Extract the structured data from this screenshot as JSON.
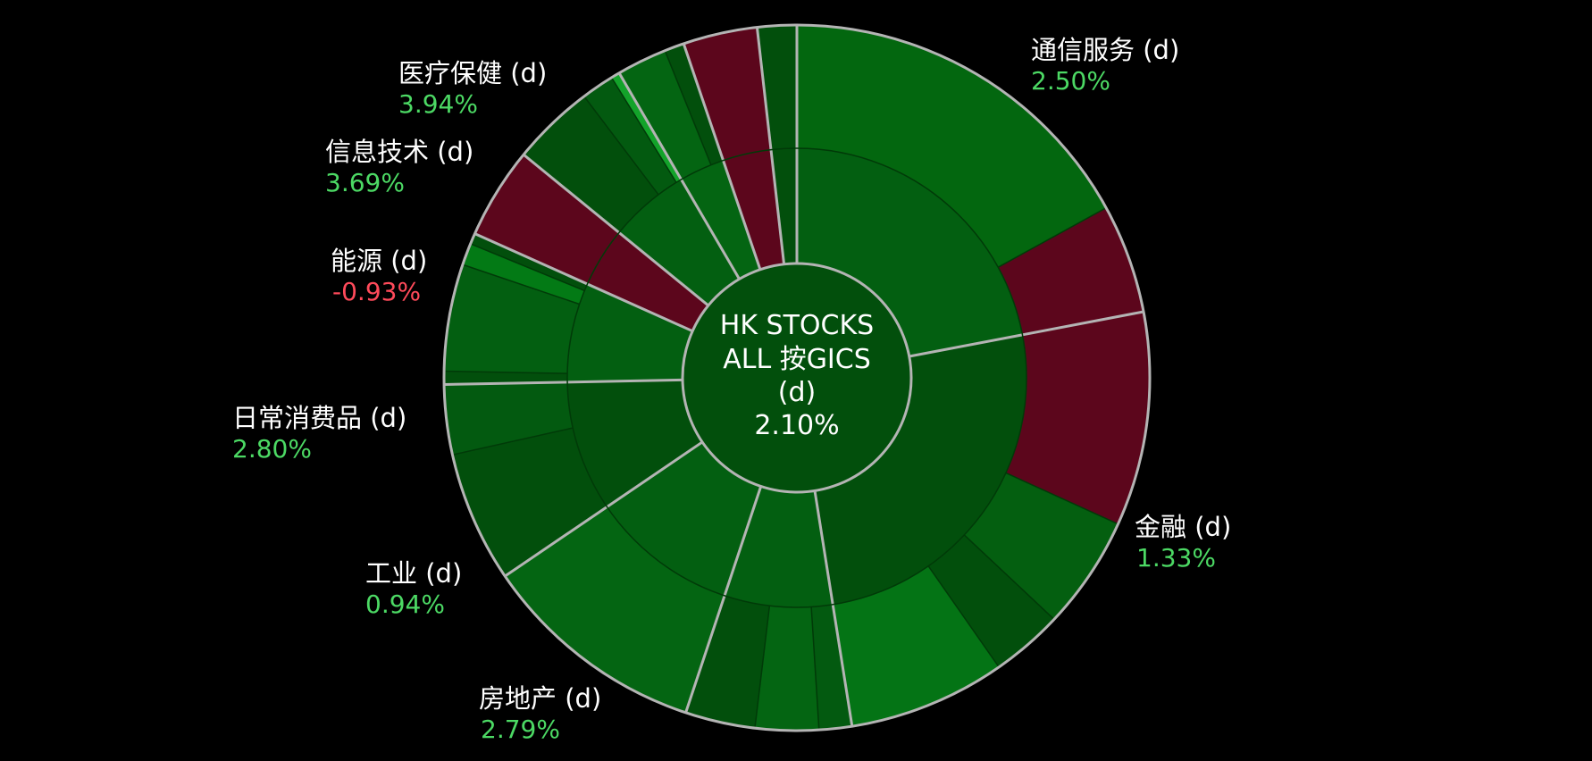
{
  "chart_data": {
    "type": "sunburst",
    "title": "",
    "center": {
      "lines": [
        "HK STOCKS",
        "ALL 按GICS",
        "(d)"
      ],
      "change": "2.10%",
      "color": "#024f0c"
    },
    "palette": {
      "positive_color": "#4cd964",
      "negative_color": "#ff4a5a",
      "separator_color": "#b4b4b4"
    },
    "sectors": [
      {
        "name": "通信服务 (d)",
        "change": "2.50%",
        "direction": "up",
        "share_pct": 22.0,
        "color": "#035f11",
        "children": [
          {
            "share_pct": 17.0,
            "color": "#03670f"
          },
          {
            "share_pct": 5.0,
            "color": "#5c061c"
          }
        ]
      },
      {
        "name": "金融 (d)",
        "change": "1.33%",
        "direction": "up",
        "share_pct": 25.5,
        "color": "#024f0c",
        "children": [
          {
            "share_pct": 9.8,
            "color": "#5c061c"
          },
          {
            "share_pct": 5.2,
            "color": "#045f10"
          },
          {
            "share_pct": 3.3,
            "color": "#024f0c"
          },
          {
            "share_pct": 7.2,
            "color": "#047415"
          }
        ]
      },
      {
        "name": "房地产 (d)",
        "change": "2.79%",
        "direction": "up",
        "share_pct": 7.6,
        "color": "#035f11",
        "children": [
          {
            "share_pct": 1.5,
            "color": "#035a10"
          },
          {
            "share_pct": 2.9,
            "color": "#046512"
          },
          {
            "share_pct": 3.2,
            "color": "#024f0c"
          }
        ]
      },
      {
        "name": "工业 (d)",
        "change": "0.94%",
        "direction": "up",
        "share_pct": 10.4,
        "color": "#035f11",
        "children": [
          {
            "share_pct": 10.4,
            "color": "#046512"
          }
        ]
      },
      {
        "name": "日常消费品 (d)",
        "change": "2.80%",
        "direction": "up",
        "share_pct": 9.2,
        "color": "#024f0c",
        "children": [
          {
            "share_pct": 6.0,
            "color": "#024f0c"
          },
          {
            "share_pct": 3.2,
            "color": "#035a10"
          }
        ]
      },
      {
        "name": "日常消费品 (d)",
        "change": "2.80%",
        "direction": "up",
        "share_pct": 7.0,
        "color": "#035f11",
        "children": [
          {
            "share_pct": 0.6,
            "color": "#024f0c"
          },
          {
            "share_pct": 4.9,
            "color": "#035f11"
          },
          {
            "share_pct": 1.0,
            "color": "#037a15"
          },
          {
            "share_pct": 0.5,
            "color": "#024f0c"
          }
        ]
      },
      {
        "name": "能源 (d)",
        "change": "-0.93%",
        "direction": "down",
        "share_pct": 4.2,
        "color": "#5c061c",
        "children": [
          {
            "share_pct": 4.2,
            "color": "#5c061c"
          }
        ]
      },
      {
        "name": "信息技术 (d)",
        "change": "3.69%",
        "direction": "up",
        "share_pct": 5.7,
        "color": "#035f11",
        "children": [
          {
            "share_pct": 3.8,
            "color": "#024f0c"
          },
          {
            "share_pct": 1.5,
            "color": "#035a10"
          },
          {
            "share_pct": 0.4,
            "color": "#13a32a"
          }
        ]
      },
      {
        "name": "医疗保健 (d)",
        "change": "3.94%",
        "direction": "up",
        "share_pct": 3.2,
        "color": "#046512",
        "children": [
          {
            "share_pct": 2.3,
            "color": "#046512"
          },
          {
            "share_pct": 0.9,
            "color": "#024f0c"
          }
        ]
      },
      {
        "name": "",
        "change": "",
        "direction": "down",
        "share_pct": 3.4,
        "color": "#5c061c",
        "children": [
          {
            "share_pct": 3.4,
            "color": "#5c061c"
          }
        ]
      },
      {
        "name": "",
        "change": "",
        "direction": "up",
        "share_pct": 1.8,
        "color": "#024f0c",
        "children": [
          {
            "share_pct": 1.8,
            "color": "#024f0c"
          }
        ]
      }
    ]
  },
  "labels": [
    {
      "name": "通信服务 (d)",
      "change": "2.50%",
      "direction": "up"
    },
    {
      "name": "金融 (d)",
      "change": "1.33%",
      "direction": "up"
    },
    {
      "name": "房地产 (d)",
      "change": "2.79%",
      "direction": "up"
    },
    {
      "name": "工业 (d)",
      "change": "0.94%",
      "direction": "up"
    },
    {
      "name": "日常消费品 (d)",
      "change": "2.80%",
      "direction": "up"
    },
    {
      "name": "能源 (d)",
      "change": "-0.93%",
      "direction": "down"
    },
    {
      "name": "信息技术 (d)",
      "change": "3.69%",
      "direction": "up"
    },
    {
      "name": "医疗保健 (d)",
      "change": "3.94%",
      "direction": "up"
    }
  ]
}
